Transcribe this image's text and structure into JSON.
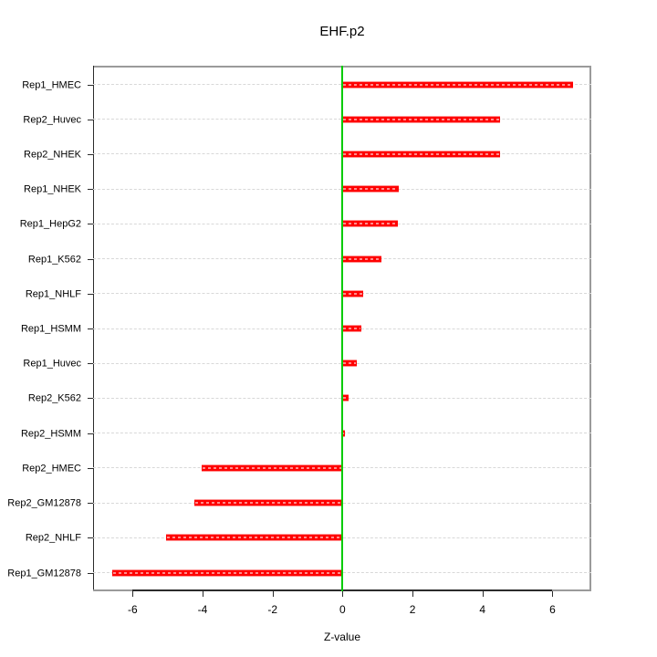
{
  "chart_data": {
    "type": "bar",
    "orientation": "horizontal",
    "title": "EHF.p2",
    "xlabel": "Z-value",
    "ylabel": "",
    "categories": [
      "Rep1_HMEC",
      "Rep2_Huvec",
      "Rep2_NHEK",
      "Rep1_NHEK",
      "Rep1_HepG2",
      "Rep1_K562",
      "Rep1_NHLF",
      "Rep1_HSMM",
      "Rep1_Huvec",
      "Rep2_K562",
      "Rep2_HSMM",
      "Rep2_HMEC",
      "Rep2_GM12878",
      "Rep2_NHLF",
      "Rep1_GM12878"
    ],
    "values": [
      6.6,
      4.5,
      4.49,
      1.6,
      1.58,
      1.12,
      0.58,
      0.54,
      0.41,
      0.18,
      0.08,
      -4.03,
      -4.23,
      -5.05,
      -6.57
    ],
    "x_ticks": [
      -6,
      -4,
      -2,
      0,
      2,
      4,
      6
    ],
    "xlim": [
      -7.13,
      7.11
    ],
    "grid": true,
    "zero_line_at": 0,
    "legend": false,
    "colors": {
      "bar_fill": "#FF0000",
      "bar_edge": "#FF9292",
      "bar_dash": "#FFFFFF",
      "zero_line": "#00CC00",
      "grid_line": "#D8D8D8",
      "box_light": "#9A9A9A",
      "axis_dark": "#2B2B2B",
      "text": "#000000",
      "background": "#FFFFFF"
    }
  }
}
